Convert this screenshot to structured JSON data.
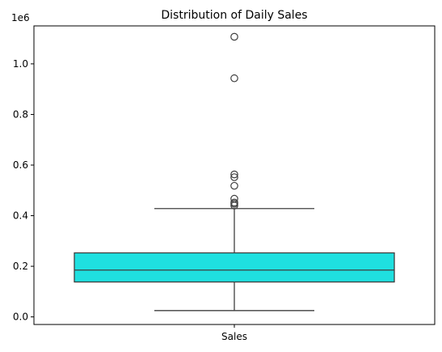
{
  "chart_data": {
    "type": "box",
    "title": "Distribution of Daily Sales",
    "xlabel": "",
    "ylabel": "",
    "categories": [
      "Sales"
    ],
    "y_offset_label": "1e6",
    "ylim": [
      -0.03,
      1.15
    ],
    "yticks": [
      0.0,
      0.2,
      0.4,
      0.6,
      0.8,
      1.0
    ],
    "ytick_labels": [
      "0.0",
      "0.2",
      "0.4",
      "0.6",
      "0.8",
      "1.0"
    ],
    "grid": false,
    "box": {
      "name": "Sales",
      "whisker_low": 0.025,
      "q1": 0.138,
      "median": 0.185,
      "q3": 0.253,
      "whisker_high": 0.428,
      "outliers": [
        0.44,
        0.447,
        0.452,
        0.467,
        0.518,
        0.552,
        0.563,
        0.943,
        1.107
      ]
    },
    "colors": {
      "box_fill": "#1fe0e0",
      "line": "#3f3f3f"
    }
  }
}
